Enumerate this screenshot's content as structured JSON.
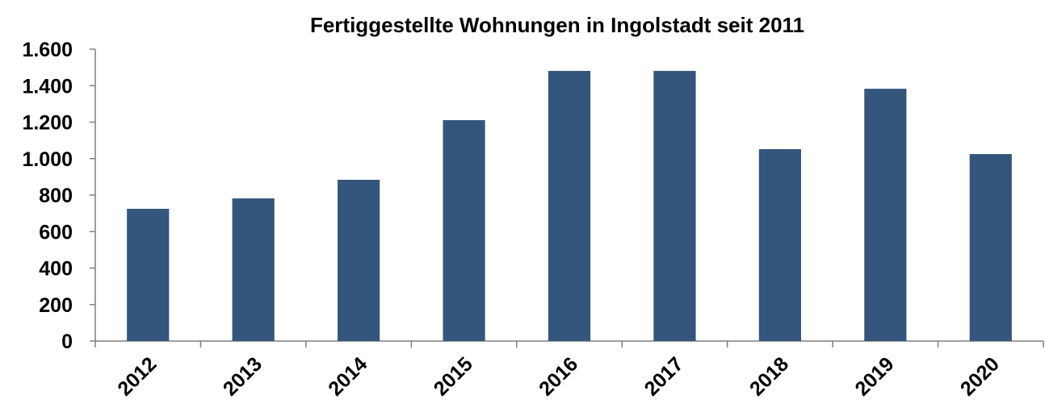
{
  "chart_data": {
    "type": "bar",
    "title": "Fertiggestellte Wohnungen in Ingolstadt seit 2011",
    "categories": [
      "2012",
      "2013",
      "2014",
      "2015",
      "2016",
      "2017",
      "2018",
      "2019",
      "2020"
    ],
    "values": [
      725,
      782,
      884,
      1211,
      1481,
      1481,
      1052,
      1383,
      1025
    ],
    "color": "#34567c",
    "ylim": [
      0,
      1600
    ],
    "yticks": [
      0,
      200,
      400,
      600,
      800,
      {
        "value": 1000,
        "label": "1.000"
      },
      {
        "value": 1200,
        "label": "1.200"
      },
      {
        "value": 1400,
        "label": "1.400"
      },
      {
        "value": 1600,
        "label": "1.600"
      }
    ],
    "grid": false
  }
}
